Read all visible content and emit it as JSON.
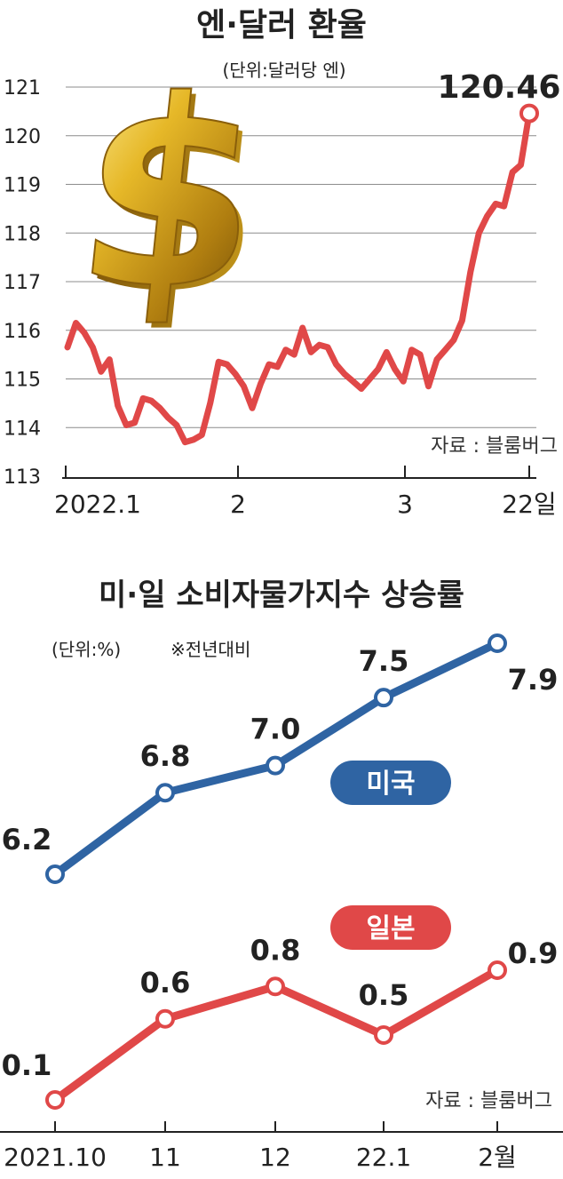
{
  "chart1": {
    "title": "엔·달러 환율",
    "unit": "(단위:달러당 엔)",
    "source": "자료 : 블룸버그",
    "end_label": "120.46",
    "icon": "dollar-sign-icon",
    "colors": {
      "line": "#e04848",
      "grid": "#8c8c8c",
      "text": "#222222"
    }
  },
  "chart2": {
    "title": "미·일 소비자물가지수 상승률",
    "unit": "(단위:%)",
    "note": "※전년대비",
    "source": "자료 : 블룸버그",
    "colors": {
      "us": "#2f64a3",
      "jp": "#e04848",
      "text": "#222222"
    }
  },
  "chart_data": [
    {
      "type": "line",
      "title": "엔·달러 환율",
      "ylabel": "(단위:달러당 엔)",
      "ylim": [
        113,
        121
      ],
      "yticks": [
        "113",
        "114",
        "115",
        "116",
        "117",
        "118",
        "119",
        "120",
        "121"
      ],
      "xticks": [
        "2022.1",
        "2",
        "3",
        "22일"
      ],
      "grid": true,
      "series": [
        {
          "values": [
            115.65,
            116.15,
            115.95,
            115.65,
            115.15,
            115.4,
            114.45,
            114.05,
            114.1,
            114.6,
            114.55,
            114.4,
            114.2,
            114.05,
            113.7,
            113.75,
            113.85,
            114.5,
            115.35,
            115.3,
            115.1,
            114.85,
            114.4,
            114.9,
            115.3,
            115.25,
            115.6,
            115.5,
            116.05,
            115.55,
            115.7,
            115.65,
            115.3,
            115.1,
            114.95,
            114.8,
            115.0,
            115.2,
            115.55,
            115.2,
            114.95,
            115.6,
            115.5,
            114.85,
            115.4,
            115.6,
            115.8,
            116.2,
            117.2,
            118.0,
            118.35,
            118.6,
            118.55,
            119.25,
            119.4,
            120.46
          ]
        }
      ],
      "annotations": [
        "120.46"
      ]
    },
    {
      "type": "line",
      "title": "미·일 소비자물가지수 상승률",
      "ylabel": "(단위:%)",
      "categories": [
        "2021.10",
        "11",
        "12",
        "22.1",
        "2월"
      ],
      "series": [
        {
          "name": "미국",
          "values": [
            6.2,
            6.8,
            7.0,
            7.5,
            7.9
          ]
        },
        {
          "name": "일본",
          "values": [
            0.1,
            0.6,
            0.8,
            0.5,
            0.9
          ]
        }
      ]
    }
  ]
}
